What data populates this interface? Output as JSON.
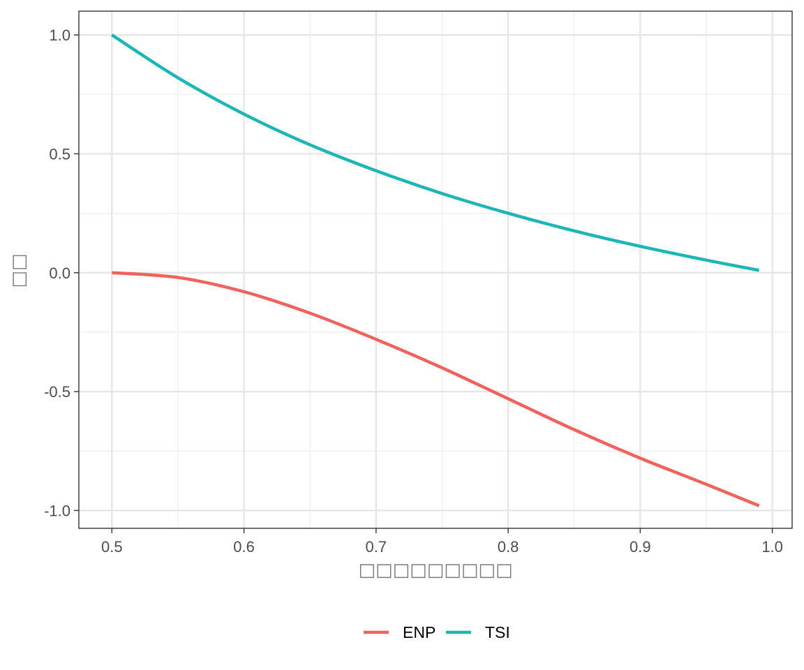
{
  "chart_data": {
    "type": "line",
    "xlabel": "□□□□□□□□□",
    "ylabel": "□□",
    "xlim": [
      0.475,
      1.015
    ],
    "ylim": [
      -1.075,
      1.1
    ],
    "x_ticks": [
      0.5,
      0.6,
      0.7,
      0.8,
      0.9,
      1.0
    ],
    "x_tick_labels": [
      "0.5",
      "0.6",
      "0.7",
      "0.8",
      "0.9",
      "1.0"
    ],
    "y_ticks": [
      -1.0,
      -0.5,
      0.0,
      0.5,
      1.0
    ],
    "y_tick_labels": [
      "-1.0",
      "-0.5",
      "0.0",
      "0.5",
      "1.0"
    ],
    "grid": true,
    "legend_position": "bottom",
    "series": [
      {
        "name": "ENP",
        "color": "#F0625C",
        "x": [
          0.5,
          0.55,
          0.6,
          0.65,
          0.7,
          0.75,
          0.8,
          0.85,
          0.9,
          0.95,
          0.99
        ],
        "y": [
          0.0,
          -0.02,
          -0.08,
          -0.17,
          -0.28,
          -0.4,
          -0.53,
          -0.66,
          -0.78,
          -0.89,
          -0.98
        ]
      },
      {
        "name": "TSI",
        "color": "#1DB5B5",
        "x": [
          0.5,
          0.55,
          0.6,
          0.65,
          0.7,
          0.75,
          0.8,
          0.85,
          0.9,
          0.95,
          0.99
        ],
        "y": [
          1.0,
          0.82,
          0.667,
          0.538,
          0.429,
          0.333,
          0.25,
          0.176,
          0.111,
          0.053,
          0.01
        ]
      }
    ]
  }
}
